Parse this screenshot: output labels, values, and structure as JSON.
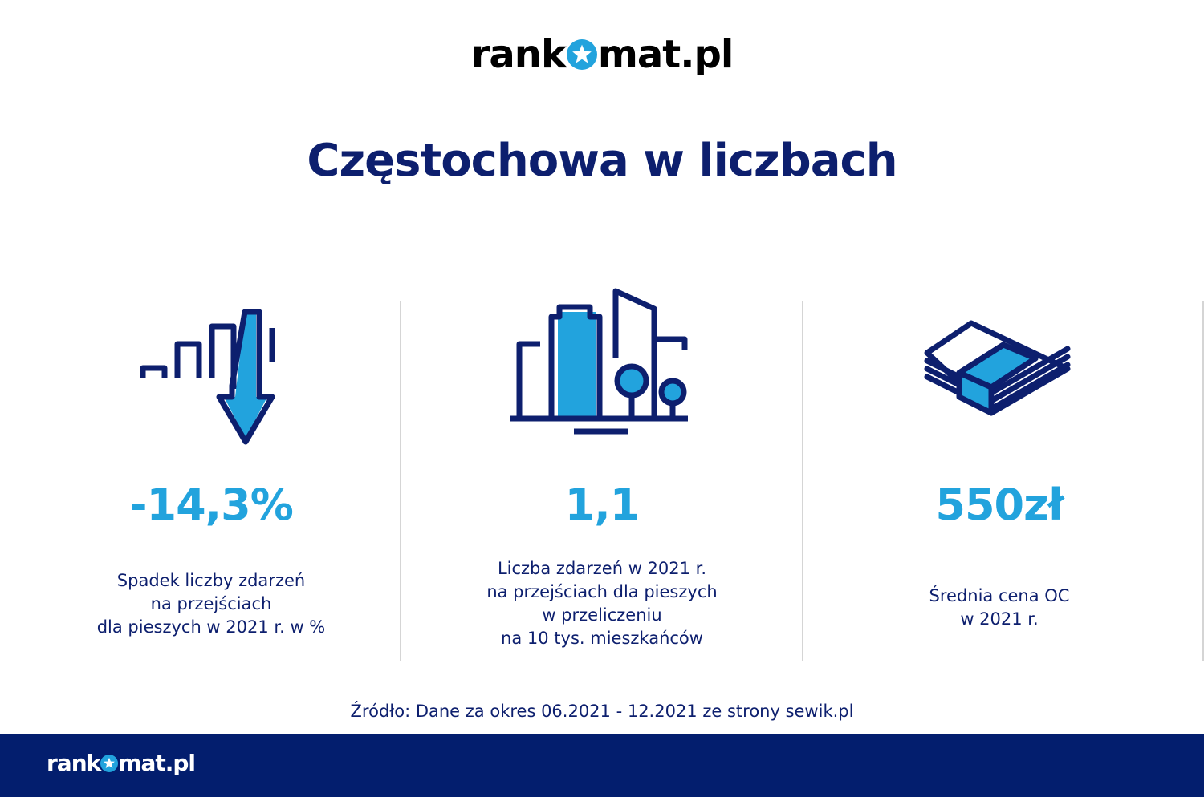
{
  "brand": {
    "logo_text": "rankomat.pl",
    "logo_left": "rank",
    "logo_right": "mat.pl"
  },
  "title": "Częstochowa w liczbach",
  "colors": {
    "navy": "#0d1f6e",
    "accent": "#22a3dd",
    "footer": "#031e6e",
    "divider": "#d5d5d5"
  },
  "stats": [
    {
      "icon": "declining-chart-arrow-icon",
      "value": "-14,3%",
      "description": [
        "Spadek liczby zdarzeń",
        "na przejściach",
        "dla pieszych w 2021 r. w %"
      ]
    },
    {
      "icon": "city-buildings-trees-icon",
      "value": "1,1",
      "description": [
        "Liczba zdarzeń w 2021 r.",
        "na przejściach dla pieszych",
        "w przeliczeniu",
        "na 10 tys. mieszkańców"
      ]
    },
    {
      "icon": "money-stack-icon",
      "value": "550zł",
      "description": [
        "Średnia cena OC",
        "w 2021 r."
      ]
    }
  ],
  "source": "Źródło: Dane za okres 06.2021 - 12.2021 ze strony sewik.pl"
}
